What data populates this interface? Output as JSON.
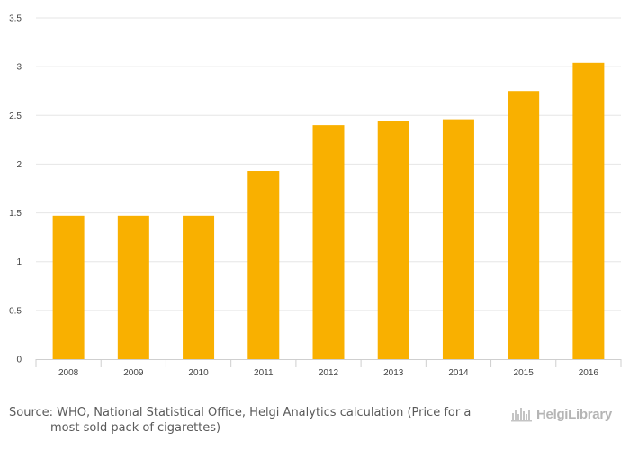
{
  "chart_data": {
    "type": "bar",
    "title": "",
    "xlabel": "",
    "ylabel": "",
    "categories": [
      "2008",
      "2009",
      "2010",
      "2011",
      "2012",
      "2013",
      "2014",
      "2015",
      "2016"
    ],
    "values": [
      1.47,
      1.47,
      1.47,
      1.93,
      2.4,
      2.44,
      2.46,
      2.75,
      3.04
    ],
    "ylim": [
      0,
      3.5
    ],
    "yticks": [
      "0",
      "0.5",
      "1",
      "1.5",
      "2",
      "2.5",
      "3",
      "3.5"
    ],
    "bar_color": "#f9b000",
    "grid": true,
    "legend": "none"
  },
  "footer": {
    "source_line1": "Source: WHO, National Statistical Office, Helgi Analytics calculation (Price for a",
    "source_line2": "most sold pack of cigarettes)"
  },
  "logo": {
    "text": "HelgiLibrary",
    "icon": "helgi-library-skyline-icon"
  }
}
